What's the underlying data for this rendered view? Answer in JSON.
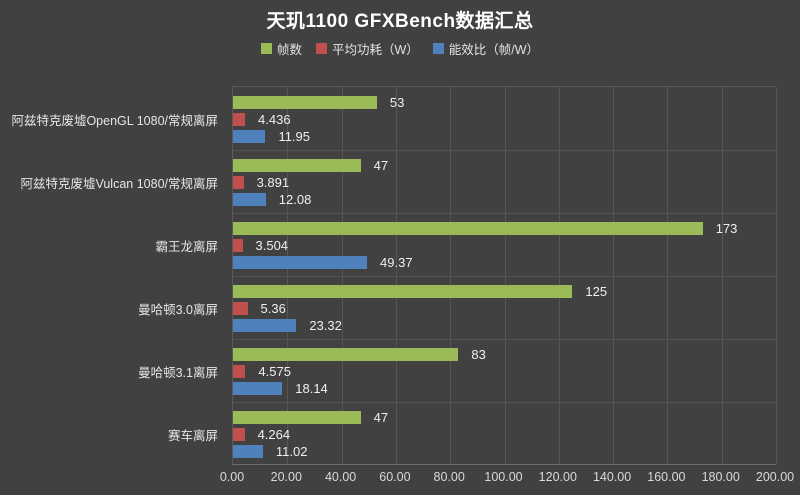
{
  "title": "天玑1100 GFXBench数据汇总",
  "legend": [
    {
      "label": "帧数",
      "color": "#9bbb59"
    },
    {
      "label": "平均功耗（W）",
      "color": "#c0504d"
    },
    {
      "label": "能效比（帧/W）",
      "color": "#4f81bd"
    }
  ],
  "colors": {
    "background": "#414141",
    "grid": "#555555",
    "title_text": "#ffffff",
    "label_text": "#e6e6e6",
    "green": "#9bbb59",
    "red": "#c0504d",
    "blue": "#4f81bd"
  },
  "chart_data": {
    "type": "bar",
    "orientation": "horizontal",
    "title": "天玑1100 GFXBench数据汇总",
    "categories": [
      "阿兹特克废墟OpenGL 1080/常规离屏",
      "阿兹特克废墟Vulcan 1080/常规离屏",
      "霸王龙离屏",
      "曼哈顿3.0离屏",
      "曼哈顿3.1离屏",
      "赛车离屏"
    ],
    "series": [
      {
        "name": "帧数",
        "color": "#9bbb59",
        "values": [
          53,
          47,
          173,
          125,
          83,
          47
        ],
        "value_labels": [
          "53",
          "47",
          "173",
          "125",
          "83",
          "47"
        ]
      },
      {
        "name": "平均功耗（W）",
        "color": "#c0504d",
        "values": [
          4.436,
          3.891,
          3.504,
          5.36,
          4.575,
          4.264
        ],
        "value_labels": [
          "4.436",
          "3.891",
          "3.504",
          "5.36",
          "4.575",
          "4.264"
        ]
      },
      {
        "name": "能效比（帧/W）",
        "color": "#4f81bd",
        "values": [
          11.95,
          12.08,
          49.37,
          23.32,
          18.14,
          11.02
        ],
        "value_labels": [
          "11.95",
          "12.08",
          "49.37",
          "23.32",
          "18.14",
          "11.02"
        ]
      }
    ],
    "xlim": [
      0,
      200
    ],
    "x_ticks": [
      "0.00",
      "20.00",
      "40.00",
      "60.00",
      "80.00",
      "100.00",
      "120.00",
      "140.00",
      "160.00",
      "180.00",
      "200.00"
    ],
    "grid": true,
    "legend_position": "top",
    "xlabel": "",
    "ylabel": ""
  }
}
